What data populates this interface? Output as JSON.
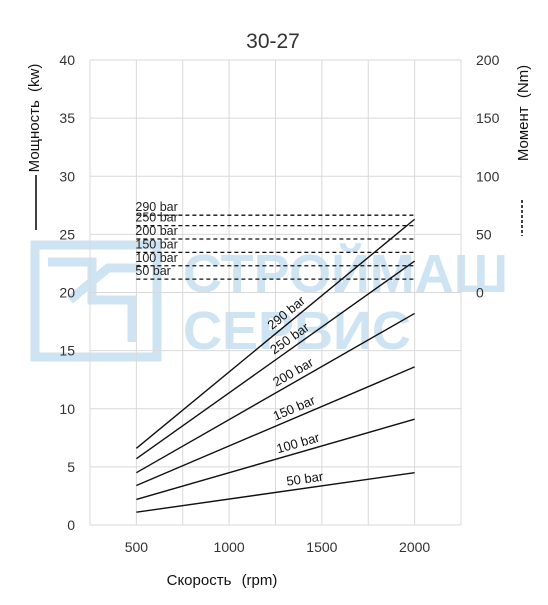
{
  "chart_data": {
    "type": "line",
    "title": "30-27",
    "xlabel": "Скорость",
    "xlabel_unit": "(rpm)",
    "ylabel": "Мощность",
    "ylabel_unit": "(kw)",
    "y2label": "Момент",
    "y2label_unit": "(Nm)",
    "xlim": [
      250,
      2250
    ],
    "ylim": [
      0,
      40
    ],
    "y2lim": [
      -200,
      200
    ],
    "x_ticks": [
      500,
      1000,
      1500,
      2000
    ],
    "y_ticks": [
      0,
      5,
      10,
      15,
      20,
      25,
      30,
      35,
      40
    ],
    "y2_ticks": [
      0,
      50,
      100,
      150,
      200
    ],
    "grid": "vertical and horizontal",
    "series": [
      {
        "name": "50 bar",
        "x": [
          500,
          2000
        ],
        "y": [
          1.1,
          4.5
        ]
      },
      {
        "name": "100 bar",
        "x": [
          500,
          2000
        ],
        "y": [
          2.2,
          9.1
        ]
      },
      {
        "name": "150 bar",
        "x": [
          500,
          2000
        ],
        "y": [
          3.4,
          13.6
        ]
      },
      {
        "name": "200 bar",
        "x": [
          500,
          2000
        ],
        "y": [
          4.5,
          18.2
        ]
      },
      {
        "name": "250 bar",
        "x": [
          500,
          2000
        ],
        "y": [
          5.7,
          22.7
        ]
      },
      {
        "name": "290 bar",
        "x": [
          500,
          2000
        ],
        "y": [
          6.6,
          26.3
        ]
      }
    ],
    "torque_series": [
      {
        "name": "50 bar",
        "x": [
          500,
          2000
        ],
        "torque": 11.5
      },
      {
        "name": "100 bar",
        "x": [
          500,
          2000
        ],
        "torque": 23
      },
      {
        "name": "150 bar",
        "x": [
          500,
          2000
        ],
        "torque": 34.5
      },
      {
        "name": "200 bar",
        "x": [
          500,
          2000
        ],
        "torque": 46
      },
      {
        "name": "250 bar",
        "x": [
          500,
          2000
        ],
        "torque": 57.5
      },
      {
        "name": "290 bar",
        "x": [
          500,
          2000
        ],
        "torque": 66.5
      }
    ]
  },
  "watermark": {
    "line1": "СТРОЙМАШ",
    "line2": "СЕРВИС",
    "color": "#cfe4f2"
  },
  "colors": {
    "line": "#111111",
    "grid": "#d9d9d9",
    "text": "#333333"
  }
}
